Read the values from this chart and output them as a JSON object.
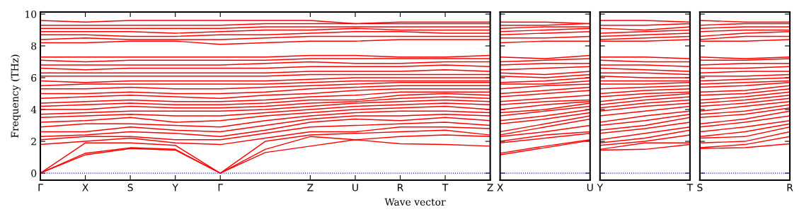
{
  "chart_data": [
    {
      "type": "line",
      "ylabel": "Frequency (THz)",
      "xlabel": "Wave vector",
      "color": "#ff0000",
      "categories": [
        "Γ",
        "X",
        "S",
        "Y",
        "Γ",
        null,
        "Z",
        "U",
        "R",
        "T",
        "Z"
      ],
      "ylim": [
        -0.44,
        10.13
      ],
      "yticks": [
        0,
        2,
        4,
        6,
        8,
        10
      ],
      "ref_lines": [
        {
          "axis": "y",
          "value": 0,
          "color": "#0000ff",
          "line_style": "dotted"
        }
      ],
      "series": [
        {
          "values": [
            0,
            1.15,
            1.55,
            1.45,
            0,
            1.3,
            1.7,
            2.1,
            1.85,
            1.8,
            1.7
          ]
        },
        {
          "values": [
            0,
            1.25,
            1.6,
            1.5,
            0,
            1.5,
            2.3,
            2.1,
            2.3,
            2.4,
            2.3
          ]
        },
        {
          "values": [
            0,
            1.9,
            1.9,
            1.75,
            0,
            2.0,
            2.4,
            2.5,
            2.6,
            2.7,
            2.4
          ]
        },
        {
          "values": [
            1.8,
            2.0,
            2.2,
            1.9,
            1.8,
            2.2,
            2.6,
            2.6,
            2.9,
            2.9,
            2.8
          ]
        },
        {
          "values": [
            2.1,
            2.3,
            2.3,
            2.1,
            2.1,
            2.5,
            2.9,
            3.0,
            3.1,
            3.2,
            3.0
          ]
        },
        {
          "values": [
            2.3,
            2.4,
            2.6,
            2.5,
            2.3,
            2.7,
            3.2,
            3.4,
            3.3,
            3.5,
            3.3
          ]
        },
        {
          "values": [
            2.6,
            2.6,
            2.9,
            2.7,
            2.6,
            3.0,
            3.4,
            3.6,
            3.6,
            3.7,
            3.6
          ]
        },
        {
          "values": [
            2.9,
            3.1,
            3.1,
            3.0,
            2.9,
            3.3,
            3.6,
            3.8,
            3.9,
            3.9,
            3.8
          ]
        },
        {
          "values": [
            3.2,
            3.3,
            3.5,
            3.2,
            3.3,
            3.6,
            3.8,
            4.0,
            4.1,
            4.2,
            4.0
          ]
        },
        {
          "values": [
            3.5,
            3.6,
            3.7,
            3.6,
            3.6,
            3.8,
            4.0,
            4.2,
            4.3,
            4.4,
            4.3
          ]
        },
        {
          "values": [
            3.7,
            3.8,
            3.9,
            3.9,
            3.9,
            4.0,
            4.2,
            4.4,
            4.5,
            4.6,
            4.5
          ]
        },
        {
          "values": [
            4.0,
            4.0,
            4.2,
            4.1,
            4.1,
            4.2,
            4.4,
            4.5,
            4.7,
            4.8,
            4.7
          ]
        },
        {
          "values": [
            4.2,
            4.3,
            4.4,
            4.3,
            4.3,
            4.4,
            4.6,
            4.6,
            4.9,
            5.0,
            4.9
          ]
        },
        {
          "values": [
            4.4,
            4.5,
            4.6,
            4.5,
            4.5,
            4.6,
            4.8,
            4.9,
            5.1,
            5.1,
            5.1
          ]
        },
        {
          "values": [
            4.7,
            4.8,
            4.9,
            4.8,
            4.7,
            4.9,
            5.0,
            5.2,
            5.3,
            5.3,
            5.3
          ]
        },
        {
          "values": [
            5.0,
            5.0,
            5.1,
            5.0,
            5.0,
            5.1,
            5.3,
            5.4,
            5.5,
            5.5,
            5.5
          ]
        },
        {
          "values": [
            5.3,
            5.3,
            5.4,
            5.3,
            5.3,
            5.4,
            5.5,
            5.6,
            5.7,
            5.7,
            5.7
          ]
        },
        {
          "values": [
            5.5,
            5.6,
            5.6,
            5.6,
            5.6,
            5.6,
            5.7,
            5.8,
            5.8,
            5.8,
            5.8
          ]
        },
        {
          "values": [
            5.8,
            5.7,
            5.8,
            5.8,
            5.8,
            5.8,
            5.9,
            6.0,
            6.0,
            6.0,
            6.0
          ]
        },
        {
          "values": [
            6.1,
            6.1,
            6.1,
            6.1,
            6.1,
            6.1,
            6.2,
            6.2,
            6.2,
            6.2,
            6.2
          ]
        },
        {
          "values": [
            6.3,
            6.3,
            6.3,
            6.3,
            6.3,
            6.3,
            6.4,
            6.4,
            6.4,
            6.5,
            6.4
          ]
        },
        {
          "values": [
            6.6,
            6.5,
            6.6,
            6.6,
            6.6,
            6.6,
            6.7,
            6.7,
            6.7,
            6.8,
            6.7
          ]
        },
        {
          "values": [
            6.8,
            6.8,
            6.8,
            6.8,
            6.8,
            6.9,
            7.0,
            6.9,
            6.9,
            7.0,
            7.0
          ]
        },
        {
          "values": [
            7.1,
            7.0,
            7.1,
            7.1,
            7.1,
            7.1,
            7.2,
            7.2,
            7.2,
            7.2,
            7.2
          ]
        },
        {
          "values": [
            7.3,
            7.3,
            7.3,
            7.3,
            7.3,
            7.3,
            7.4,
            7.4,
            7.3,
            7.3,
            7.4
          ]
        },
        {
          "values": [
            8.2,
            8.2,
            8.3,
            8.3,
            8.1,
            8.2,
            8.3,
            8.3,
            8.4,
            8.4,
            8.4
          ]
        },
        {
          "values": [
            8.4,
            8.5,
            8.4,
            8.4,
            8.4,
            8.5,
            8.6,
            8.6,
            8.6,
            8.6,
            8.6
          ]
        },
        {
          "values": [
            8.7,
            8.7,
            8.6,
            8.6,
            8.7,
            8.7,
            8.8,
            8.9,
            8.9,
            8.8,
            8.8
          ]
        },
        {
          "values": [
            8.9,
            8.9,
            8.9,
            8.8,
            8.9,
            9.0,
            9.0,
            9.1,
            9.0,
            9.0,
            9.0
          ]
        },
        {
          "values": [
            9.1,
            9.1,
            9.1,
            9.1,
            9.1,
            9.2,
            9.2,
            9.2,
            9.2,
            9.2,
            9.2
          ]
        },
        {
          "values": [
            9.3,
            9.3,
            9.3,
            9.3,
            9.3,
            9.4,
            9.4,
            9.4,
            9.4,
            9.4,
            9.4
          ]
        },
        {
          "values": [
            9.6,
            9.5,
            9.6,
            9.6,
            9.6,
            9.6,
            9.6,
            9.4,
            9.5,
            9.5,
            9.5
          ]
        }
      ]
    },
    {
      "type": "line",
      "color": "#ff0000",
      "tick_labels": "x",
      "categories": [
        "X",
        null,
        "U"
      ],
      "ylim": [
        -0.44,
        10.13
      ],
      "yticks": [
        0,
        2,
        4,
        6,
        8,
        10
      ],
      "ref_lines": [
        {
          "axis": "y",
          "value": 0,
          "color": "#0000ff",
          "line_style": "dotted"
        }
      ],
      "series": [
        {
          "values": [
            1.15,
            1.6,
            2.05
          ]
        },
        {
          "values": [
            1.25,
            1.7,
            2.1
          ]
        },
        {
          "values": [
            1.9,
            2.2,
            2.5
          ]
        },
        {
          "values": [
            2.0,
            2.4,
            2.6
          ]
        },
        {
          "values": [
            2.3,
            2.6,
            3.0
          ]
        },
        {
          "values": [
            2.4,
            2.9,
            3.4
          ]
        },
        {
          "values": [
            2.6,
            3.1,
            3.6
          ]
        },
        {
          "values": [
            3.1,
            3.4,
            3.8
          ]
        },
        {
          "values": [
            3.3,
            3.6,
            4.0
          ]
        },
        {
          "values": [
            3.6,
            3.9,
            4.2
          ]
        },
        {
          "values": [
            3.8,
            4.0,
            4.4
          ]
        },
        {
          "values": [
            4.0,
            4.3,
            4.5
          ]
        },
        {
          "values": [
            4.3,
            4.5,
            4.6
          ]
        },
        {
          "values": [
            4.5,
            4.7,
            4.9
          ]
        },
        {
          "values": [
            4.8,
            5.0,
            5.2
          ]
        },
        {
          "values": [
            5.0,
            5.2,
            5.4
          ]
        },
        {
          "values": [
            5.3,
            5.5,
            5.6
          ]
        },
        {
          "values": [
            5.6,
            5.6,
            5.8
          ]
        },
        {
          "values": [
            5.7,
            5.8,
            6.0
          ]
        },
        {
          "values": [
            6.1,
            6.0,
            6.2
          ]
        },
        {
          "values": [
            6.3,
            6.2,
            6.4
          ]
        },
        {
          "values": [
            6.5,
            6.6,
            6.7
          ]
        },
        {
          "values": [
            6.8,
            6.9,
            6.9
          ]
        },
        {
          "values": [
            7.0,
            7.1,
            7.2
          ]
        },
        {
          "values": [
            7.3,
            7.2,
            7.4
          ]
        },
        {
          "values": [
            8.2,
            8.3,
            8.3
          ]
        },
        {
          "values": [
            8.5,
            8.5,
            8.6
          ]
        },
        {
          "values": [
            8.7,
            8.8,
            8.9
          ]
        },
        {
          "values": [
            8.9,
            9.0,
            9.1
          ]
        },
        {
          "values": [
            9.1,
            9.2,
            9.2
          ]
        },
        {
          "values": [
            9.3,
            9.3,
            9.4
          ]
        },
        {
          "values": [
            9.5,
            9.5,
            9.4
          ]
        }
      ]
    },
    {
      "type": "line",
      "color": "#ff0000",
      "tick_labels": "x",
      "categories": [
        "Y",
        null,
        "T"
      ],
      "ylim": [
        -0.44,
        10.13
      ],
      "yticks": [
        0,
        2,
        4,
        6,
        8,
        10
      ],
      "ref_lines": [
        {
          "axis": "y",
          "value": 0,
          "color": "#0000ff",
          "line_style": "dotted"
        }
      ],
      "series": [
        {
          "values": [
            1.45,
            1.5,
            1.8
          ]
        },
        {
          "values": [
            1.5,
            1.9,
            1.9
          ]
        },
        {
          "values": [
            1.75,
            2.0,
            2.4
          ]
        },
        {
          "values": [
            1.9,
            2.2,
            2.7
          ]
        },
        {
          "values": [
            2.1,
            2.5,
            2.9
          ]
        },
        {
          "values": [
            2.5,
            2.8,
            3.2
          ]
        },
        {
          "values": [
            2.7,
            3.0,
            3.5
          ]
        },
        {
          "values": [
            3.0,
            3.3,
            3.7
          ]
        },
        {
          "values": [
            3.2,
            3.6,
            3.9
          ]
        },
        {
          "values": [
            3.6,
            3.9,
            4.2
          ]
        },
        {
          "values": [
            3.9,
            4.2,
            4.4
          ]
        },
        {
          "values": [
            4.1,
            4.4,
            4.6
          ]
        },
        {
          "values": [
            4.3,
            4.6,
            4.8
          ]
        },
        {
          "values": [
            4.5,
            4.8,
            5.0
          ]
        },
        {
          "values": [
            4.8,
            5.0,
            5.1
          ]
        },
        {
          "values": [
            5.0,
            5.2,
            5.3
          ]
        },
        {
          "values": [
            5.3,
            5.4,
            5.5
          ]
        },
        {
          "values": [
            5.6,
            5.6,
            5.7
          ]
        },
        {
          "values": [
            5.8,
            5.8,
            5.8
          ]
        },
        {
          "values": [
            6.1,
            6.0,
            6.0
          ]
        },
        {
          "values": [
            6.3,
            6.3,
            6.2
          ]
        },
        {
          "values": [
            6.6,
            6.5,
            6.4
          ]
        },
        {
          "values": [
            6.8,
            6.8,
            6.7
          ]
        },
        {
          "values": [
            7.1,
            7.0,
            7.0
          ]
        },
        {
          "values": [
            7.3,
            7.3,
            7.2
          ]
        },
        {
          "values": [
            8.3,
            8.3,
            8.4
          ]
        },
        {
          "values": [
            8.4,
            8.5,
            8.6
          ]
        },
        {
          "values": [
            8.6,
            8.7,
            8.8
          ]
        },
        {
          "values": [
            8.8,
            8.9,
            9.0
          ]
        },
        {
          "values": [
            9.1,
            9.0,
            9.2
          ]
        },
        {
          "values": [
            9.3,
            9.3,
            9.4
          ]
        },
        {
          "values": [
            9.6,
            9.6,
            9.5
          ]
        }
      ]
    },
    {
      "type": "line",
      "color": "#ff0000",
      "tick_labels": "x",
      "categories": [
        "S",
        null,
        "R"
      ],
      "ylim": [
        -0.44,
        10.13
      ],
      "yticks": [
        0,
        2,
        4,
        6,
        8,
        10
      ],
      "ref_lines": [
        {
          "axis": "y",
          "value": 0,
          "color": "#0000ff",
          "line_style": "dotted"
        }
      ],
      "series": [
        {
          "values": [
            1.55,
            1.6,
            1.85
          ]
        },
        {
          "values": [
            1.6,
            1.8,
            2.3
          ]
        },
        {
          "values": [
            1.9,
            2.0,
            2.6
          ]
        },
        {
          "values": [
            2.2,
            2.3,
            2.9
          ]
        },
        {
          "values": [
            2.3,
            2.6,
            3.1
          ]
        },
        {
          "values": [
            2.6,
            2.9,
            3.3
          ]
        },
        {
          "values": [
            2.9,
            3.2,
            3.6
          ]
        },
        {
          "values": [
            3.1,
            3.4,
            3.9
          ]
        },
        {
          "values": [
            3.5,
            3.7,
            4.1
          ]
        },
        {
          "values": [
            3.7,
            3.9,
            4.3
          ]
        },
        {
          "values": [
            3.9,
            4.2,
            4.5
          ]
        },
        {
          "values": [
            4.2,
            4.4,
            4.7
          ]
        },
        {
          "values": [
            4.4,
            4.6,
            4.9
          ]
        },
        {
          "values": [
            4.6,
            4.8,
            5.1
          ]
        },
        {
          "values": [
            4.9,
            5.0,
            5.3
          ]
        },
        {
          "values": [
            5.1,
            5.2,
            5.5
          ]
        },
        {
          "values": [
            5.4,
            5.5,
            5.7
          ]
        },
        {
          "values": [
            5.6,
            5.7,
            5.8
          ]
        },
        {
          "values": [
            5.8,
            5.9,
            6.0
          ]
        },
        {
          "values": [
            6.1,
            6.1,
            6.2
          ]
        },
        {
          "values": [
            6.3,
            6.4,
            6.4
          ]
        },
        {
          "values": [
            6.6,
            6.6,
            6.7
          ]
        },
        {
          "values": [
            6.8,
            6.9,
            6.9
          ]
        },
        {
          "values": [
            7.1,
            7.1,
            7.2
          ]
        },
        {
          "values": [
            7.3,
            7.2,
            7.3
          ]
        },
        {
          "values": [
            8.3,
            8.3,
            8.4
          ]
        },
        {
          "values": [
            8.4,
            8.6,
            8.6
          ]
        },
        {
          "values": [
            8.6,
            8.8,
            8.9
          ]
        },
        {
          "values": [
            8.9,
            9.0,
            9.0
          ]
        },
        {
          "values": [
            9.1,
            9.2,
            9.2
          ]
        },
        {
          "values": [
            9.3,
            9.4,
            9.4
          ]
        },
        {
          "values": [
            9.6,
            9.5,
            9.5
          ]
        }
      ]
    }
  ]
}
